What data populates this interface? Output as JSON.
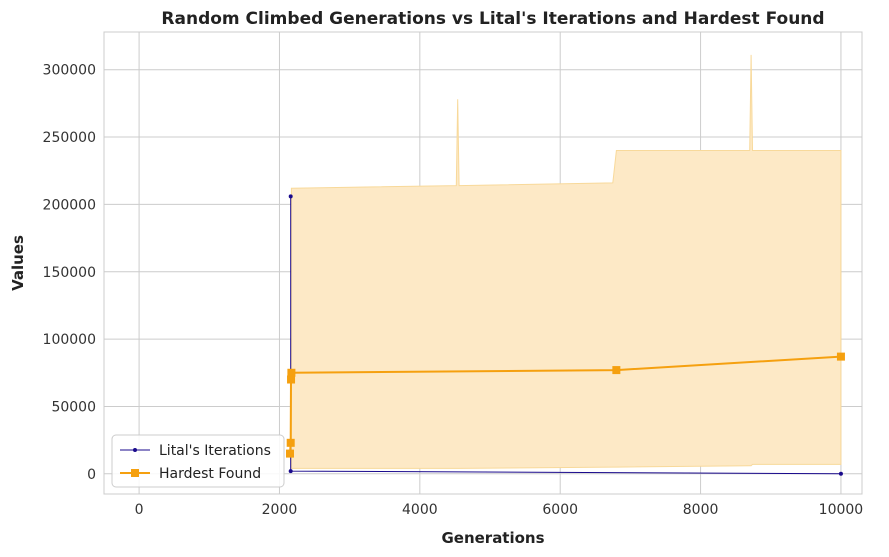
{
  "chart_data": {
    "type": "line",
    "title": "Random Climbed Generations vs Lital's Iterations and Hardest Found",
    "xlabel": "Generations",
    "ylabel": "Values",
    "xlim": [
      -500,
      10300
    ],
    "ylim": [
      -15000,
      328000
    ],
    "x_ticks": [
      0,
      2000,
      4000,
      6000,
      8000,
      10000
    ],
    "y_ticks": [
      0,
      50000,
      100000,
      150000,
      200000,
      250000,
      300000
    ],
    "grid": true,
    "legend_position": "lower-left",
    "series": [
      {
        "name": "Lital's Iterations",
        "color": "#1a0a8c",
        "marker": "dot",
        "x": [
          2160,
          2160,
          10000
        ],
        "y": [
          206000,
          2000,
          0
        ]
      },
      {
        "name": "Hardest Found",
        "color": "#f5a00f",
        "marker": "square",
        "x": [
          2150,
          2160,
          2165,
          2170,
          6800,
          10000
        ],
        "y": [
          15000,
          23000,
          70000,
          75000,
          77000,
          87000
        ]
      }
    ],
    "band": {
      "color": "#fde9c6",
      "x": [
        2170,
        4520,
        4540,
        4560,
        6750,
        6800,
        8700,
        8720,
        8740,
        10000
      ],
      "upper": [
        212000,
        214000,
        278000,
        214000,
        216000,
        240000,
        240000,
        311000,
        240000,
        240000
      ],
      "lower": [
        4000,
        4000,
        4000,
        4000,
        5000,
        5000,
        6000,
        6000,
        7000,
        7000
      ]
    }
  }
}
